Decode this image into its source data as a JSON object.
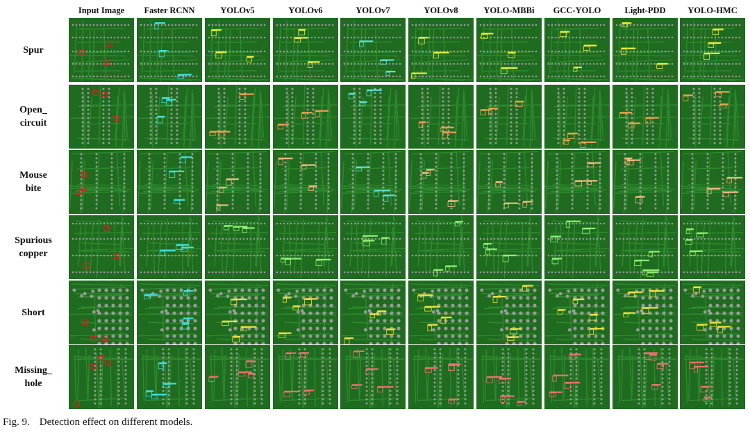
{
  "figure": {
    "column_headers": [
      "Input Image",
      "Faster RCNN",
      "YOLOv5",
      "YOLOv6",
      "YOLOv7",
      "YOLOv8",
      "YOLO-MBBi",
      "GCC-YOLO",
      "Light-PDD",
      "YOLO-HMC"
    ],
    "row_labels": [
      [
        "Spur"
      ],
      [
        "Open_",
        "circuit"
      ],
      [
        "Mouse",
        "bite"
      ],
      [
        "Spurious",
        "copper"
      ],
      [
        "Short"
      ],
      [
        "Missing_",
        "hole"
      ]
    ],
    "tile_content": "PCB image with detection boxes",
    "colors": {
      "board_green": "#1f6b1f",
      "trace_green": "#2f8a2f",
      "pad_gray": "#9a9a9a",
      "input_box_red": "#e02020",
      "spur_box": "#e8f03a",
      "open_circuit_box": "#f0a050",
      "mouse_bite_box": "#f2b880",
      "spurious_copper_box": "#8ef070",
      "short_box": "#f0e040",
      "missing_hole_box": "#f07070",
      "faster_rcnn_box": "#40e0e0",
      "yolov7_box": "#60e0d0"
    }
  },
  "caption": {
    "label": "Fig. 9.",
    "text": "Detection effect on different models."
  }
}
